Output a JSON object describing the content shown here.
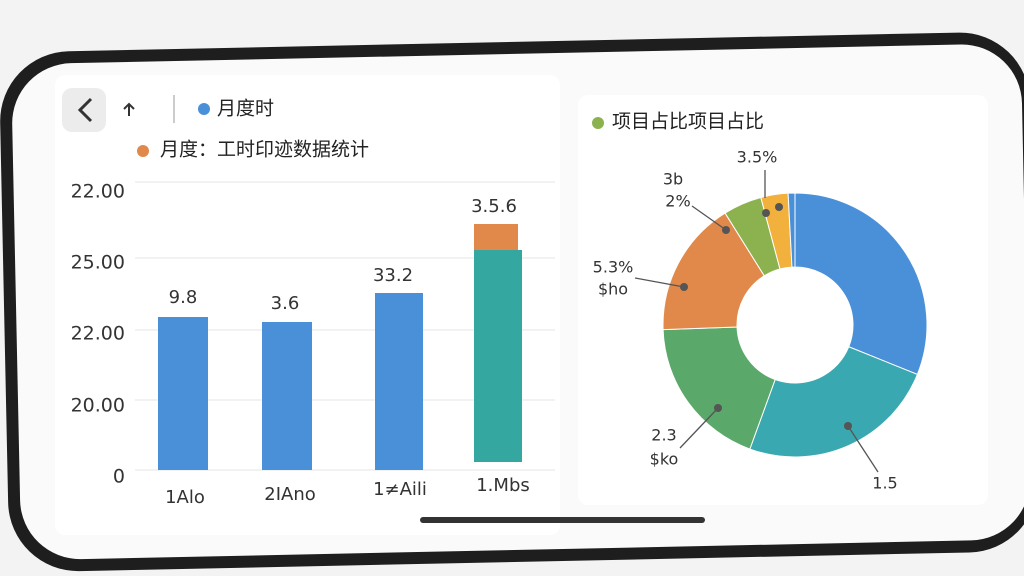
{
  "bar_panel": {
    "legend": [
      "月度时",
      "月度：工时印迹数据统计"
    ],
    "y_labels": [
      "22.00",
      "25.00",
      "22.00",
      "20.00",
      "0"
    ],
    "bar_labels": [
      "9.8",
      "3.6",
      "33.2",
      "3.5.6"
    ],
    "categories": [
      "1Alo",
      "2IAno",
      "1≠Aili",
      "1.Mbs"
    ]
  },
  "pie_panel": {
    "title": "项目占比项目占比",
    "labels": [
      "3.5%",
      "3b",
      "2%",
      "5.3%",
      "$ho",
      "2.3",
      "$ko",
      "1.5"
    ]
  }
}
